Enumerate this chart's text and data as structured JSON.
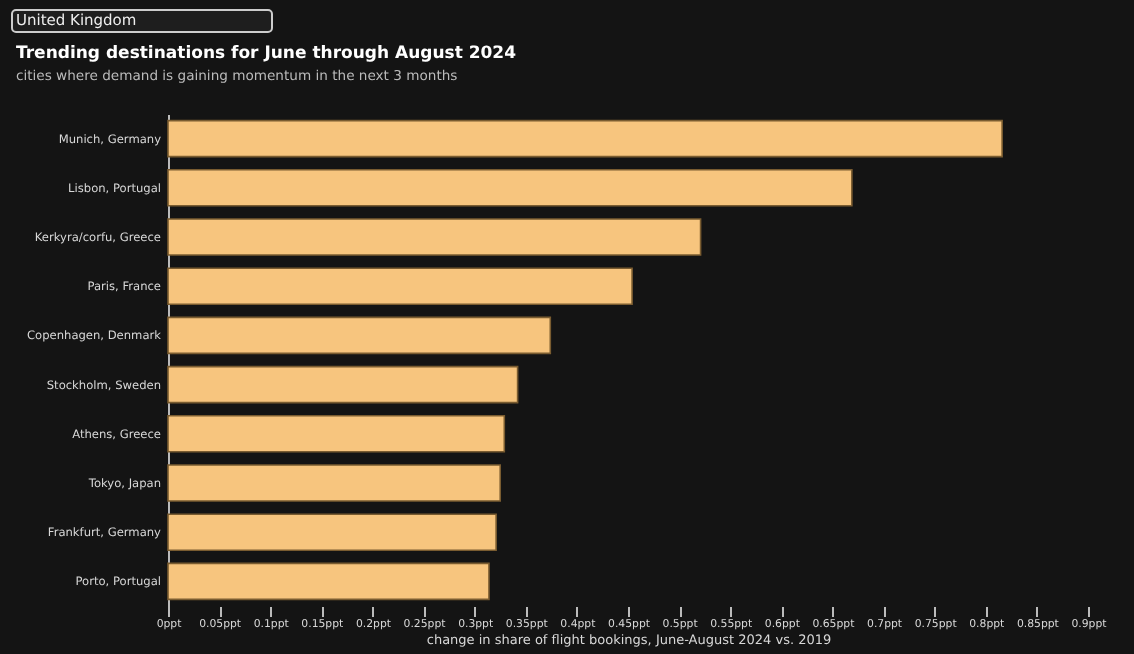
{
  "chart_data": {
    "type": "bar",
    "orientation": "horizontal",
    "title": "Trending destinations for June through August 2024",
    "subtitle": "cities where demand is gaining momentum in the next 3 months",
    "xlabel": "change in share of flight bookings, June-August 2024 vs. 2019",
    "annotations": [
      "United Kingdom"
    ],
    "categories": [
      "Munich, Germany",
      "Lisbon, Portugal",
      "Kerkyra/corfu, Greece",
      "Paris, France",
      "Copenhagen, Denmark",
      "Stockholm, Sweden",
      "Athens, Greece",
      "Tokyo, Japan",
      "Frankfurt, Germany",
      "Porto, Portugal"
    ],
    "values": [
      0.816,
      0.669,
      0.521,
      0.454,
      0.374,
      0.342,
      0.329,
      0.325,
      0.321,
      0.314
    ],
    "color": "#f7c57e",
    "xlim": [
      0,
      0.9
    ],
    "xticks": [
      {
        "value": 0,
        "label": "0ppt"
      },
      {
        "value": 0.05,
        "label": "0.05ppt"
      },
      {
        "value": 0.1,
        "label": "0.1ppt"
      },
      {
        "value": 0.15,
        "label": "0.15ppt"
      },
      {
        "value": 0.2,
        "label": "0.2ppt"
      },
      {
        "value": 0.25,
        "label": "0.25ppt"
      },
      {
        "value": 0.3,
        "label": "0.3ppt"
      },
      {
        "value": 0.35,
        "label": "0.35ppt"
      },
      {
        "value": 0.4,
        "label": "0.4ppt"
      },
      {
        "value": 0.45,
        "label": "0.45ppt"
      },
      {
        "value": 0.5,
        "label": "0.5ppt"
      },
      {
        "value": 0.55,
        "label": "0.55ppt"
      },
      {
        "value": 0.6,
        "label": "0.6ppt"
      },
      {
        "value": 0.65,
        "label": "0.65ppt"
      },
      {
        "value": 0.7,
        "label": "0.7ppt"
      },
      {
        "value": 0.75,
        "label": "0.75ppt"
      },
      {
        "value": 0.8,
        "label": "0.8ppt"
      },
      {
        "value": 0.85,
        "label": "0.85ppt"
      },
      {
        "value": 0.9,
        "label": "0.9ppt"
      }
    ],
    "grid": false
  }
}
